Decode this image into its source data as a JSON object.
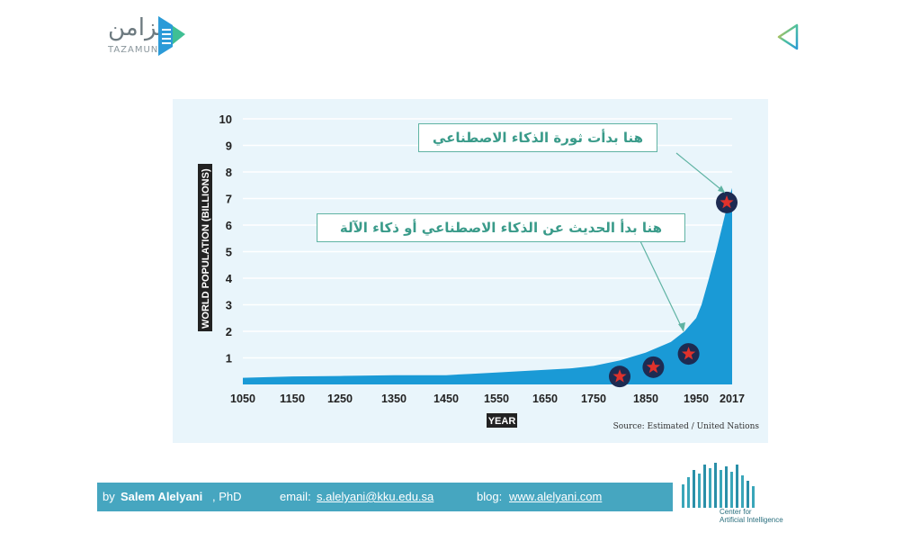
{
  "logo": {
    "name_ar": "تزامن",
    "name_en": "TAZAMUN"
  },
  "callouts": {
    "revolution": "هنا بدأت ثورة الذكاء الاصطناعي",
    "talk": "هنا بدأ الحديث عن الذكاء الاصطناعي أو ذكاء الآلة"
  },
  "chart_data": {
    "type": "area",
    "ylabel": "WORLD POPULATION (BILLIONS)",
    "xlabel": "YEAR",
    "source": "Source: Estimated / United Nations",
    "x_ticks": [
      "1050",
      "1150",
      "1250",
      "1350",
      "1450",
      "1550",
      "1650",
      "1750",
      "1850",
      "1950",
      "2017"
    ],
    "y_ticks": [
      "1",
      "2",
      "3",
      "4",
      "5",
      "6",
      "7",
      "8",
      "9",
      "10"
    ],
    "ylim": [
      0,
      10
    ],
    "grid": true,
    "color": "#1a9ad6",
    "series": [
      {
        "values": [
          {
            "x": 1050,
            "y": 0.25
          },
          {
            "x": 1150,
            "y": 0.3
          },
          {
            "x": 1250,
            "y": 0.32
          },
          {
            "x": 1350,
            "y": 0.35
          },
          {
            "x": 1450,
            "y": 0.35
          },
          {
            "x": 1500,
            "y": 0.4
          },
          {
            "x": 1550,
            "y": 0.45
          },
          {
            "x": 1600,
            "y": 0.5
          },
          {
            "x": 1650,
            "y": 0.55
          },
          {
            "x": 1700,
            "y": 0.6
          },
          {
            "x": 1750,
            "y": 0.7
          },
          {
            "x": 1800,
            "y": 0.9
          },
          {
            "x": 1850,
            "y": 1.2
          },
          {
            "x": 1900,
            "y": 1.6
          },
          {
            "x": 1927,
            "y": 2.0
          },
          {
            "x": 1950,
            "y": 2.5
          },
          {
            "x": 1960,
            "y": 3.0
          },
          {
            "x": 1974,
            "y": 4.0
          },
          {
            "x": 1987,
            "y": 5.0
          },
          {
            "x": 1999,
            "y": 6.0
          },
          {
            "x": 2011,
            "y": 7.0
          },
          {
            "x": 2017,
            "y": 7.4
          }
        ]
      }
    ],
    "markers": [
      {
        "x": 1800,
        "y": 0.3
      },
      {
        "x": 1865,
        "y": 0.65
      },
      {
        "x": 1935,
        "y": 1.15
      },
      {
        "x": 2007,
        "y": 6.85
      }
    ]
  },
  "footer": {
    "by": "by",
    "author": "Salem Alelyani",
    "degree": ", PhD",
    "email_label": "email:",
    "email": "s.alelyani@kku.edu.sa",
    "blog_label": "blog:",
    "blog": "www.alelyani.com"
  },
  "center_logo": {
    "line1": "Center for",
    "line2": "Artificial Intelligence"
  }
}
